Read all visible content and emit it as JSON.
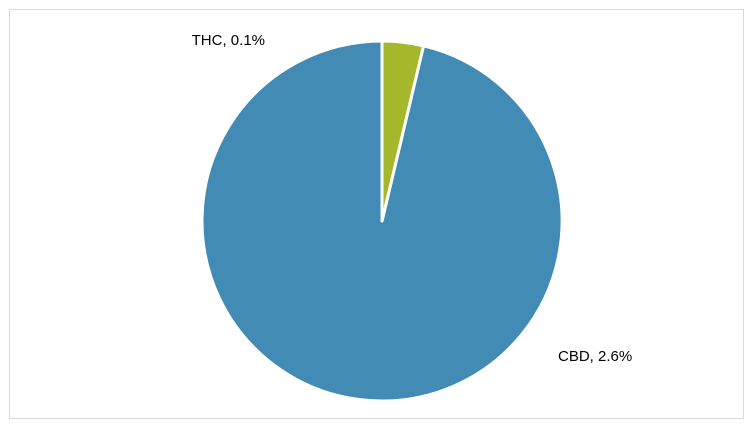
{
  "chart_data": {
    "type": "pie",
    "title": "",
    "start_angle_deg": 0,
    "direction": "counterclockwise",
    "slices": [
      {
        "name": "CBD",
        "value": 2.6,
        "color": "#428bb5",
        "label": "CBD, 2.6%"
      },
      {
        "name": "THC",
        "value": 0.1,
        "color": "#a5b82c",
        "label": "THC, 0.1%"
      }
    ],
    "legend": "none",
    "slice_border_color": "#ffffff"
  }
}
